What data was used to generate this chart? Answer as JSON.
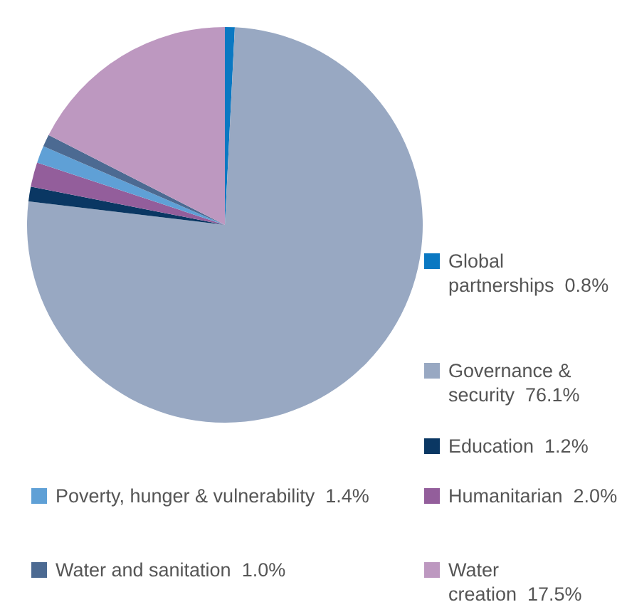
{
  "chart_data": {
    "type": "pie",
    "categories": [
      "Global partnerships",
      "Governance & security",
      "Education",
      "Humanitarian",
      "Poverty, hunger & vulnerability",
      "Water and sanitation",
      "Water creation"
    ],
    "values": [
      0.8,
      76.1,
      1.2,
      2.0,
      1.4,
      1.0,
      17.5
    ],
    "colors": [
      "#0a78c2",
      "#98a8c2",
      "#0a3763",
      "#935e9b",
      "#5fa0d6",
      "#4c6a92",
      "#bd98c0"
    ],
    "value_labels": [
      "0.8%",
      "76.1%",
      "1.2%",
      "2.0%",
      "1.4%",
      "1.0%",
      "17.5%"
    ],
    "legend": "right"
  }
}
